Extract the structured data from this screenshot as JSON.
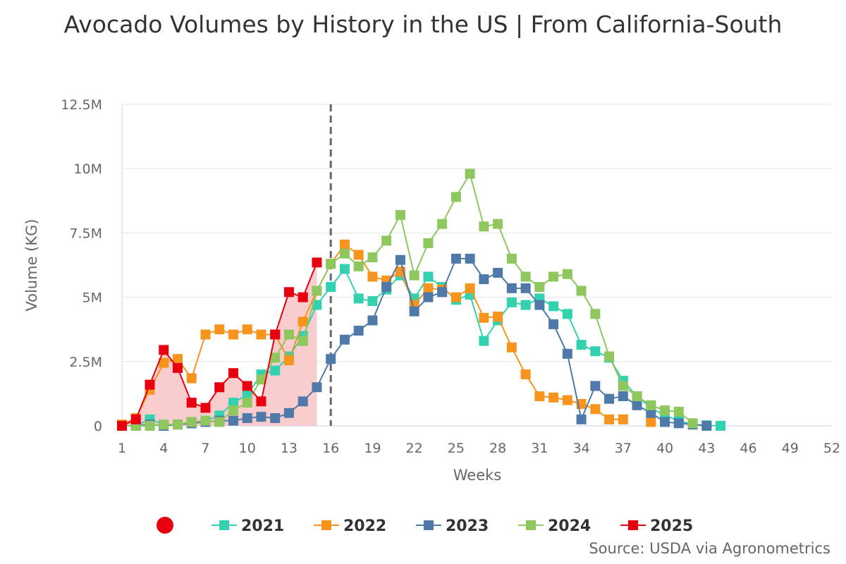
{
  "chart_data": {
    "type": "line",
    "title": "Avocado Volumes by History in the US | From California-South",
    "xlabel": "Weeks",
    "ylabel": "Volume (KG)",
    "xlim": [
      1,
      52
    ],
    "ylim": [
      0,
      12500000
    ],
    "x_ticks": [
      1,
      4,
      7,
      10,
      13,
      16,
      19,
      22,
      25,
      28,
      31,
      34,
      37,
      40,
      43,
      46,
      49,
      52
    ],
    "y_ticks": [
      {
        "value": 0,
        "label": "0"
      },
      {
        "value": 2500000,
        "label": "2.5M"
      },
      {
        "value": 5000000,
        "label": "5M"
      },
      {
        "value": 7500000,
        "label": "7.5M"
      },
      {
        "value": 10000000,
        "label": "10M"
      },
      {
        "value": 12500000,
        "label": "12.5M"
      }
    ],
    "grid": true,
    "current_week_marker": 16,
    "legend_position": "bottom",
    "legend_marker_color": "#e8000f",
    "series": [
      {
        "name": "2021",
        "color": "#34d1b0",
        "x": [
          1,
          2,
          3,
          4,
          5,
          6,
          7,
          8,
          9,
          10,
          11,
          12,
          13,
          14,
          15,
          16,
          17,
          18,
          19,
          20,
          21,
          22,
          23,
          24,
          25,
          26,
          27,
          28,
          29,
          30,
          31,
          32,
          33,
          34,
          35,
          36,
          37,
          38,
          39,
          40,
          41,
          42,
          43,
          44
        ],
        "values": [
          0,
          0,
          250000,
          50000,
          50000,
          100000,
          200000,
          400000,
          900000,
          1200000,
          2000000,
          2150000,
          2700000,
          3500000,
          4700000,
          5400000,
          6100000,
          4950000,
          4850000,
          5300000,
          5850000,
          4950000,
          5800000,
          5400000,
          4900000,
          5100000,
          3300000,
          4100000,
          4800000,
          4700000,
          4950000,
          4650000,
          4350000,
          3150000,
          2900000,
          2650000,
          1750000,
          1150000,
          700000,
          400000,
          200000,
          50000,
          20000,
          0
        ]
      },
      {
        "name": "2022",
        "color": "#f7941d",
        "x": [
          1,
          2,
          3,
          4,
          5,
          6,
          7,
          8,
          9,
          10,
          11,
          12,
          13,
          14,
          15,
          16,
          17,
          18,
          19,
          20,
          21,
          22,
          23,
          24,
          25,
          26,
          27,
          28,
          29,
          30,
          31,
          32,
          33,
          34,
          35,
          36,
          37,
          38,
          39
        ],
        "values": [
          50000,
          300000,
          1400000,
          2450000,
          2600000,
          1850000,
          3550000,
          3750000,
          3550000,
          3750000,
          3550000,
          3550000,
          2550000,
          4050000,
          5250000,
          6300000,
          7050000,
          6650000,
          5800000,
          5650000,
          6000000,
          4700000,
          5350000,
          5300000,
          5000000,
          5350000,
          4200000,
          4250000,
          3050000,
          2000000,
          1150000,
          1100000,
          1000000,
          850000,
          650000,
          250000,
          250000,
          null,
          150000
        ]
      },
      {
        "name": "2023",
        "color": "#4f79a8",
        "x": [
          1,
          2,
          3,
          4,
          5,
          6,
          7,
          8,
          9,
          10,
          11,
          12,
          13,
          14,
          15,
          16,
          17,
          18,
          19,
          20,
          21,
          22,
          23,
          24,
          25,
          26,
          27,
          28,
          29,
          30,
          31,
          32,
          33,
          34,
          35,
          36,
          37,
          38,
          39,
          40,
          41,
          42,
          43
        ],
        "values": [
          0,
          0,
          50000,
          0,
          50000,
          100000,
          150000,
          200000,
          200000,
          300000,
          350000,
          300000,
          500000,
          950000,
          1500000,
          2600000,
          3350000,
          3700000,
          4100000,
          5400000,
          6450000,
          4450000,
          5000000,
          5200000,
          6500000,
          6500000,
          5700000,
          5950000,
          5350000,
          5350000,
          4700000,
          3950000,
          2800000,
          250000,
          1550000,
          1050000,
          1150000,
          800000,
          500000,
          150000,
          100000,
          50000,
          0
        ]
      },
      {
        "name": "2024",
        "color": "#8fc65d",
        "x": [
          1,
          2,
          3,
          4,
          5,
          6,
          7,
          8,
          9,
          10,
          11,
          12,
          13,
          14,
          15,
          16,
          17,
          18,
          19,
          20,
          21,
          22,
          23,
          24,
          25,
          26,
          27,
          28,
          29,
          30,
          31,
          32,
          33,
          34,
          35,
          36,
          37,
          38,
          39,
          40,
          41,
          42
        ],
        "values": [
          0,
          0,
          0,
          50000,
          50000,
          150000,
          200000,
          150000,
          600000,
          900000,
          1800000,
          2650000,
          3550000,
          3300000,
          5250000,
          6300000,
          6700000,
          6200000,
          6550000,
          7200000,
          8200000,
          5850000,
          7100000,
          7850000,
          8900000,
          9800000,
          7750000,
          7850000,
          6500000,
          5800000,
          5400000,
          5800000,
          5900000,
          5250000,
          4350000,
          2700000,
          1550000,
          1150000,
          800000,
          600000,
          550000,
          100000
        ]
      },
      {
        "name": "2025",
        "color": "#e8000f",
        "x": [
          1,
          2,
          3,
          4,
          5,
          6,
          7,
          8,
          9,
          10,
          11,
          12,
          13,
          14,
          15
        ],
        "values": [
          0,
          250000,
          1600000,
          2950000,
          2250000,
          900000,
          700000,
          1500000,
          2050000,
          1550000,
          950000,
          3550000,
          5200000,
          5000000,
          6350000
        ]
      }
    ]
  },
  "source": "Source: USDA via Agronometrics"
}
